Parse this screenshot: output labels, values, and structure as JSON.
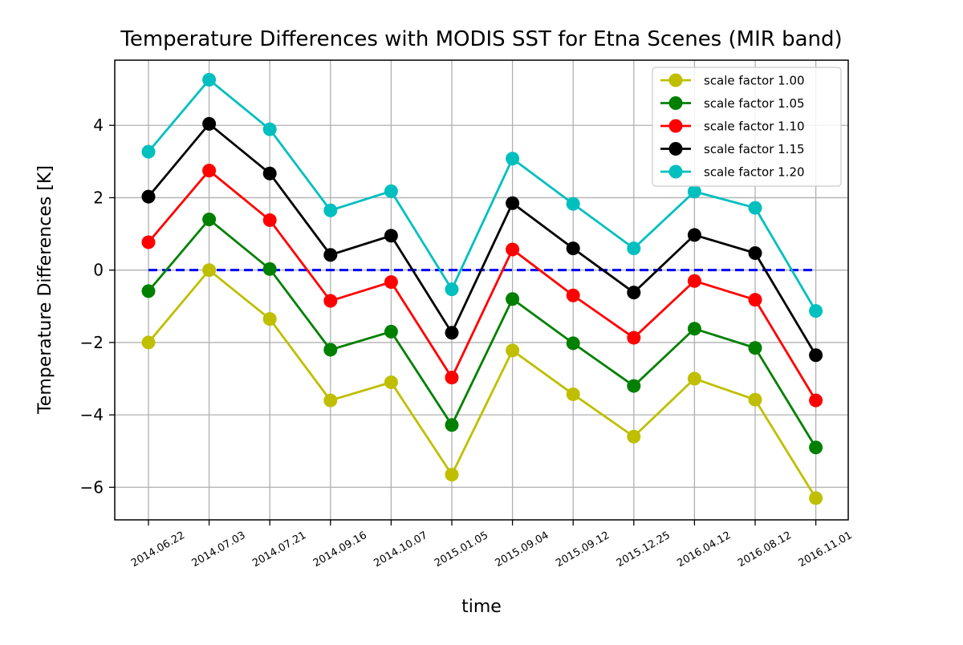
{
  "chart_data": {
    "type": "line",
    "title": "Temperature Differences with MODIS SST for Etna Scenes (MIR band)",
    "xlabel": "time",
    "ylabel": "Temperature Differences [K]",
    "ylim": [
      -6.9,
      5.8
    ],
    "yticks": [
      4,
      2,
      0,
      -2,
      -4,
      -6
    ],
    "ytick_labels": [
      "4",
      "2",
      "0",
      "−2",
      "−4",
      "−6"
    ],
    "categories": [
      "2014.06.22",
      "2014.07.03",
      "2014.07.21",
      "2014.09.16",
      "2014.10.07",
      "2015.01.05",
      "2015.09.04",
      "2015.09.12",
      "2015.12.25",
      "2016.04.12",
      "2016.08.12",
      "2016.11.01"
    ],
    "grid": true,
    "legend_position": "top-right",
    "reference_line": {
      "y": 0,
      "color": "#0000ff",
      "style": "dashed"
    },
    "series": [
      {
        "name": "scale factor 1.00",
        "color": "#bfbf00",
        "values": [
          -2.0,
          0.0,
          -1.35,
          -3.6,
          -3.1,
          -5.65,
          -2.22,
          -3.43,
          -4.6,
          -3.0,
          -3.58,
          -6.3
        ]
      },
      {
        "name": "scale factor 1.05",
        "color": "#008000",
        "values": [
          -0.58,
          1.4,
          0.03,
          -2.2,
          -1.7,
          -4.28,
          -0.8,
          -2.02,
          -3.2,
          -1.62,
          -2.15,
          -4.9
        ]
      },
      {
        "name": "scale factor 1.10",
        "color": "#ff0000",
        "values": [
          0.77,
          2.75,
          1.38,
          -0.85,
          -0.33,
          -2.97,
          0.57,
          -0.7,
          -1.87,
          -0.3,
          -0.82,
          -3.6
        ]
      },
      {
        "name": "scale factor 1.15",
        "color": "#000000",
        "values": [
          2.03,
          4.04,
          2.67,
          0.42,
          0.95,
          -1.73,
          1.85,
          0.6,
          -0.62,
          0.97,
          0.47,
          -2.35
        ]
      },
      {
        "name": "scale factor 1.20",
        "color": "#00bfbf",
        "values": [
          3.27,
          5.26,
          3.89,
          1.65,
          2.18,
          -0.53,
          3.08,
          1.83,
          0.6,
          2.17,
          1.72,
          -1.13
        ]
      }
    ]
  }
}
